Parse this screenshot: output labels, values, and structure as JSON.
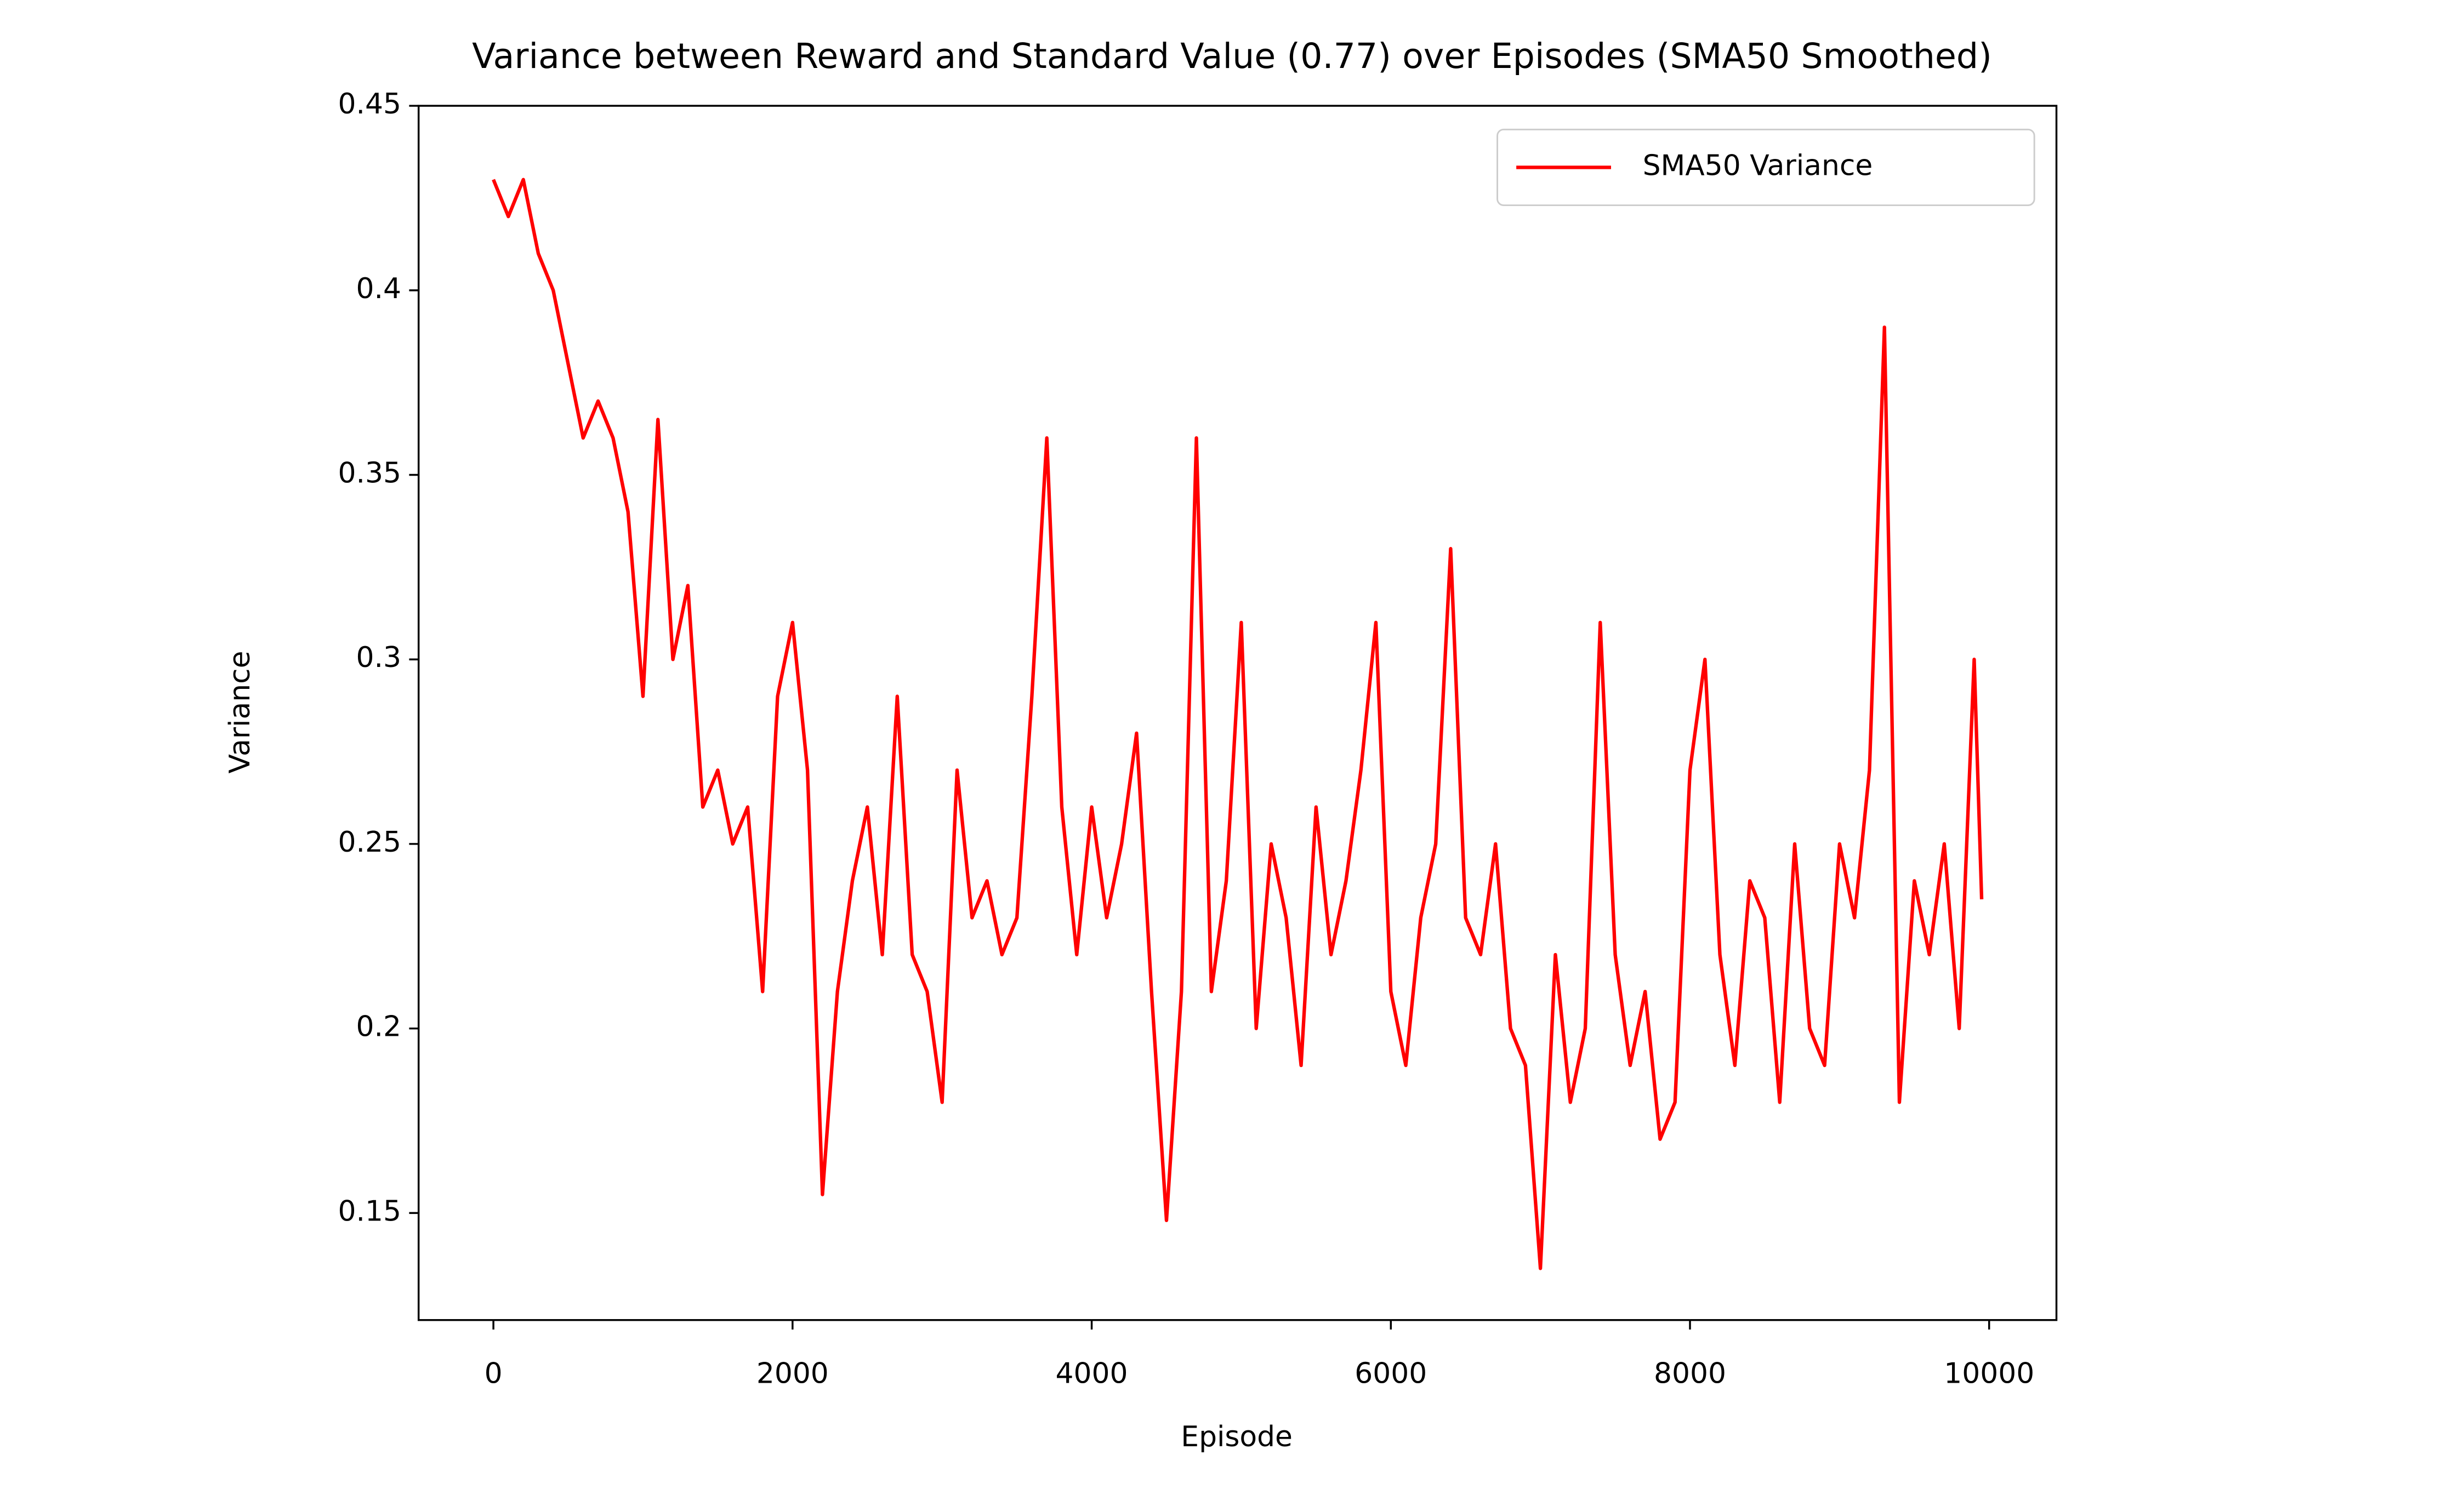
{
  "chart_data": {
    "type": "line",
    "title": "Variance between Reward and Standard Value (0.77) over Episodes (SMA50 Smoothed)",
    "xlabel": "Episode",
    "ylabel": "Variance",
    "x": [
      0,
      100,
      200,
      300,
      400,
      500,
      600,
      700,
      800,
      900,
      1000,
      1100,
      1200,
      1300,
      1400,
      1500,
      1600,
      1700,
      1800,
      1900,
      2000,
      2100,
      2200,
      2300,
      2400,
      2500,
      2600,
      2700,
      2800,
      2900,
      3000,
      3100,
      3200,
      3300,
      3400,
      3500,
      3600,
      3700,
      3800,
      3900,
      4000,
      4100,
      4200,
      4300,
      4400,
      4500,
      4600,
      4700,
      4800,
      4900,
      5000,
      5100,
      5200,
      5300,
      5400,
      5500,
      5600,
      5700,
      5800,
      5900,
      6000,
      6100,
      6200,
      6300,
      6400,
      6500,
      6600,
      6700,
      6800,
      6900,
      7000,
      7100,
      7200,
      7300,
      7400,
      7500,
      7600,
      7700,
      7800,
      7900,
      8000,
      8100,
      8200,
      8300,
      8400,
      8500,
      8600,
      8700,
      8800,
      8900,
      9000,
      9100,
      9200,
      9300,
      9400,
      9500,
      9600,
      9700,
      9800,
      9900,
      9950
    ],
    "series": [
      {
        "name": "SMA50 Variance",
        "color": "#ff0000",
        "values": [
          0.43,
          0.42,
          0.43,
          0.41,
          0.4,
          0.38,
          0.36,
          0.37,
          0.36,
          0.34,
          0.29,
          0.365,
          0.3,
          0.32,
          0.26,
          0.27,
          0.25,
          0.26,
          0.21,
          0.29,
          0.31,
          0.27,
          0.155,
          0.21,
          0.24,
          0.26,
          0.22,
          0.29,
          0.22,
          0.21,
          0.18,
          0.27,
          0.23,
          0.24,
          0.22,
          0.23,
          0.29,
          0.36,
          0.26,
          0.22,
          0.26,
          0.23,
          0.25,
          0.28,
          0.21,
          0.148,
          0.21,
          0.36,
          0.21,
          0.24,
          0.31,
          0.2,
          0.25,
          0.23,
          0.19,
          0.26,
          0.22,
          0.24,
          0.27,
          0.31,
          0.21,
          0.19,
          0.23,
          0.25,
          0.33,
          0.23,
          0.22,
          0.25,
          0.2,
          0.19,
          0.135,
          0.22,
          0.18,
          0.2,
          0.31,
          0.22,
          0.19,
          0.21,
          0.17,
          0.18,
          0.27,
          0.3,
          0.22,
          0.19,
          0.24,
          0.23,
          0.18,
          0.25,
          0.2,
          0.19,
          0.25,
          0.23,
          0.27,
          0.39,
          0.18,
          0.24,
          0.22,
          0.25,
          0.2,
          0.3,
          0.235
        ]
      }
    ],
    "xlim": [
      -500,
      10450
    ],
    "xticks": [
      0,
      2000,
      4000,
      6000,
      8000,
      10000
    ],
    "ylim": [
      0.121,
      0.45
    ],
    "yticks": [
      0.15,
      0.2,
      0.25,
      0.3,
      0.35,
      0.4,
      0.45
    ],
    "legend": "upper right"
  }
}
